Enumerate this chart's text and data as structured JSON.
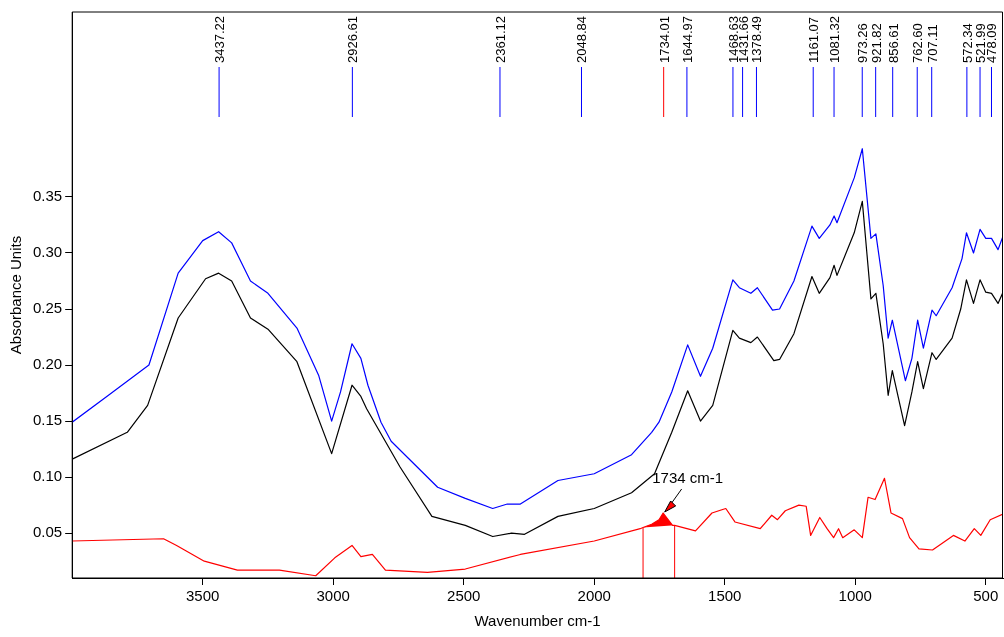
{
  "chart_data": {
    "type": "line",
    "xlabel": "Wavenumber cm-1",
    "ylabel": "Absorbance Units",
    "xlim": [
      4000,
      434
    ],
    "xticks": [
      3500,
      3000,
      2500,
      2000,
      1500,
      1000,
      500
    ],
    "ylim": [
      0.01,
      0.515
    ],
    "yticks": [
      0.05,
      {
        "value": 0.1,
        "label": "0.10"
      },
      0.15,
      {
        "value": 0.2,
        "label": "0.20"
      },
      0.25,
      {
        "value": 0.3,
        "label": "0.30"
      },
      0.35
    ],
    "grid": false,
    "legend": false,
    "marker": "none",
    "line_style": "solid",
    "series": [
      {
        "color": "#0000ff",
        "x": [
          4000,
          3861,
          3706,
          3594,
          3500,
          3439,
          3389,
          3317,
          3250,
          3139,
          3056,
          3006,
          2972,
          2928,
          2894,
          2867,
          2817,
          2778,
          2600,
          2494,
          2389,
          2333,
          2283,
          2139,
          2000,
          1857,
          1780,
          1752,
          1703,
          1642,
          1593,
          1546,
          1469,
          1444,
          1400,
          1375,
          1317,
          1290,
          1235,
          1166,
          1138,
          1097,
          1081,
          1070,
          1004,
          973,
          940,
          921,
          893,
          874,
          858,
          808,
          783,
          761,
          739,
          706,
          690,
          629,
          591,
          574,
          547,
          522,
          500,
          478,
          453,
          434
        ],
        "values": [
          0.149,
          0.173,
          0.2,
          0.282,
          0.311,
          0.319,
          0.309,
          0.275,
          0.264,
          0.233,
          0.191,
          0.15,
          0.176,
          0.219,
          0.206,
          0.182,
          0.149,
          0.132,
          0.091,
          0.081,
          0.072,
          0.076,
          0.076,
          0.097,
          0.103,
          0.12,
          0.14,
          0.149,
          0.176,
          0.218,
          0.19,
          0.215,
          0.276,
          0.269,
          0.264,
          0.269,
          0.249,
          0.25,
          0.275,
          0.324,
          0.313,
          0.325,
          0.333,
          0.327,
          0.367,
          0.393,
          0.313,
          0.317,
          0.271,
          0.224,
          0.24,
          0.186,
          0.206,
          0.24,
          0.215,
          0.249,
          0.244,
          0.269,
          0.295,
          0.318,
          0.3,
          0.321,
          0.313,
          0.313,
          0.303,
          0.315
        ]
      },
      {
        "color": "#000000",
        "x": [
          4000,
          3789,
          3711,
          3594,
          3489,
          3439,
          3389,
          3317,
          3250,
          3139,
          3006,
          2928,
          2894,
          2872,
          2744,
          2622,
          2494,
          2389,
          2317,
          2267,
          2139,
          2000,
          1857,
          1769,
          1703,
          1642,
          1593,
          1546,
          1469,
          1444,
          1400,
          1375,
          1312,
          1290,
          1235,
          1166,
          1138,
          1097,
          1081,
          1070,
          1004,
          973,
          940,
          921,
          893,
          874,
          858,
          811,
          783,
          761,
          739,
          706,
          690,
          629,
          596,
          574,
          547,
          522,
          500,
          478,
          453,
          434
        ],
        "values": [
          0.116,
          0.14,
          0.164,
          0.242,
          0.277,
          0.282,
          0.275,
          0.242,
          0.232,
          0.203,
          0.121,
          0.182,
          0.172,
          0.161,
          0.109,
          0.065,
          0.057,
          0.047,
          0.05,
          0.049,
          0.065,
          0.072,
          0.086,
          0.103,
          0.14,
          0.177,
          0.15,
          0.164,
          0.231,
          0.224,
          0.22,
          0.225,
          0.204,
          0.205,
          0.228,
          0.279,
          0.264,
          0.278,
          0.289,
          0.28,
          0.318,
          0.346,
          0.259,
          0.264,
          0.219,
          0.173,
          0.195,
          0.146,
          0.176,
          0.203,
          0.179,
          0.211,
          0.205,
          0.224,
          0.25,
          0.276,
          0.255,
          0.276,
          0.265,
          0.264,
          0.255,
          0.265
        ]
      },
      {
        "color": "#ff0000",
        "x": [
          4000,
          3650,
          3600,
          3494,
          3367,
          3206,
          3067,
          2994,
          2928,
          2894,
          2850,
          2800,
          2639,
          2494,
          2283,
          2000,
          1824,
          1813,
          1780,
          1752,
          1736,
          1720,
          1700,
          1692,
          1612,
          1549,
          1496,
          1461,
          1364,
          1320,
          1298,
          1268,
          1216,
          1188,
          1171,
          1136,
          1108,
          1083,
          1064,
          1048,
          1004,
          973,
          951,
          924,
          888,
          863,
          819,
          792,
          756,
          704,
          624,
          580,
          544,
          519,
          483,
          434
        ],
        "values": [
          0.043,
          0.045,
          0.039,
          0.025,
          0.017,
          0.017,
          0.012,
          0.028,
          0.039,
          0.029,
          0.031,
          0.017,
          0.015,
          0.018,
          0.031,
          0.043,
          0.054,
          0.055,
          0.058,
          0.062,
          0.068,
          0.063,
          0.057,
          0.057,
          0.052,
          0.068,
          0.072,
          0.06,
          0.054,
          0.066,
          0.062,
          0.07,
          0.075,
          0.074,
          0.048,
          0.064,
          0.054,
          0.046,
          0.054,
          0.046,
          0.053,
          0.046,
          0.082,
          0.08,
          0.099,
          0.068,
          0.063,
          0.046,
          0.036,
          0.035,
          0.048,
          0.043,
          0.054,
          0.048,
          0.062,
          0.067
        ]
      }
    ],
    "ref_lines": [
      {
        "axis": "x",
        "value": 3437.22,
        "label": "3437.22",
        "color": "#0000ff"
      },
      {
        "axis": "x",
        "value": 2926.61,
        "label": "2926.61",
        "color": "#0000ff"
      },
      {
        "axis": "x",
        "value": 2361.12,
        "label": "2361.12",
        "color": "#0000ff"
      },
      {
        "axis": "x",
        "value": 2048.84,
        "label": "2048.84",
        "color": "#0000ff"
      },
      {
        "axis": "x",
        "value": 1734.01,
        "label": "1734.01",
        "color": "#ff0000"
      },
      {
        "axis": "x",
        "value": 1644.97,
        "label": "1644.97",
        "color": "#0000ff"
      },
      {
        "axis": "x",
        "value": 1468.63,
        "label": "1468.63",
        "color": "#0000ff"
      },
      {
        "axis": "x",
        "value": 1431.66,
        "label": "1431.66",
        "color": "#0000ff"
      },
      {
        "axis": "x",
        "value": 1378.49,
        "label": "1378.49",
        "color": "#0000ff"
      },
      {
        "axis": "x",
        "value": 1161.07,
        "label": "1161.07",
        "color": "#0000ff"
      },
      {
        "axis": "x",
        "value": 1081.32,
        "label": "1081.32",
        "color": "#0000ff"
      },
      {
        "axis": "x",
        "value": 973.26,
        "label": "973.26",
        "color": "#0000ff"
      },
      {
        "axis": "x",
        "value": 921.82,
        "label": "921.82",
        "color": "#0000ff"
      },
      {
        "axis": "x",
        "value": 856.61,
        "label": "856.61",
        "color": "#0000ff"
      },
      {
        "axis": "x",
        "value": 762.6,
        "label": "762.60",
        "color": "#0000ff"
      },
      {
        "axis": "x",
        "value": 707.11,
        "label": "707.11",
        "color": "#0000ff"
      },
      {
        "axis": "x",
        "value": 572.34,
        "label": "572.34",
        "color": "#0000ff"
      },
      {
        "axis": "x",
        "value": 521.99,
        "label": "521.99",
        "color": "#0000ff"
      },
      {
        "axis": "x",
        "value": 478.09,
        "label": "478.09",
        "color": "#0000ff"
      },
      {
        "axis": "x",
        "value": 1813,
        "color": "#ff0000"
      },
      {
        "axis": "x",
        "value": 1692,
        "color": "#ff0000"
      }
    ],
    "annotations": [
      {
        "text": "1734 cm-1",
        "x": 1734,
        "y": 0.068
      }
    ]
  }
}
